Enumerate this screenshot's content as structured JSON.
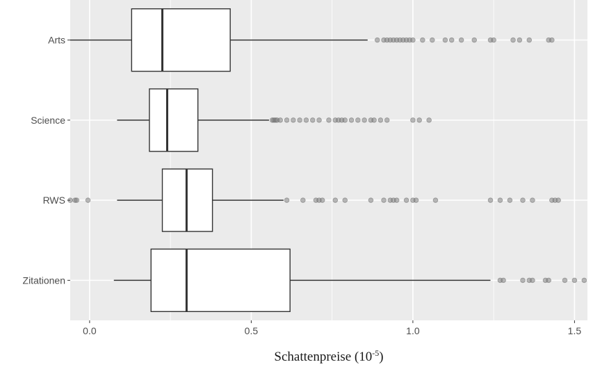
{
  "chart_data": {
    "type": "boxplot",
    "orientation": "horizontal",
    "xlabel": "Schattenpreise (10",
    "xlabel_superscript": "-5",
    "xlabel_suffix": ")",
    "xlim": [
      -0.06,
      1.54
    ],
    "xticks": [
      0.0,
      0.5,
      1.0,
      1.5
    ],
    "xtick_labels": [
      "0.0",
      "0.5",
      "1.0",
      "1.5"
    ],
    "grid": true,
    "colors": {
      "panel_background": "#ebebeb",
      "gridline": "#ffffff",
      "box_fill": "#ffffff",
      "box_stroke": "#333333",
      "outlier": "#808080"
    },
    "categories": [
      "Arts",
      "Science",
      "RWS",
      "Zitationen"
    ],
    "boxes": [
      {
        "label": "Arts",
        "whisker_low": -0.06,
        "q1": 0.13,
        "median": 0.225,
        "q3": 0.435,
        "whisker_high": 0.86,
        "outliers": [
          0.89,
          0.91,
          0.92,
          0.93,
          0.94,
          0.95,
          0.96,
          0.97,
          0.98,
          0.99,
          1.0,
          1.03,
          1.06,
          1.1,
          1.12,
          1.15,
          1.19,
          1.24,
          1.25,
          1.31,
          1.33,
          1.36,
          1.42,
          1.43
        ]
      },
      {
        "label": "Science",
        "whisker_low": 0.085,
        "q1": 0.185,
        "median": 0.24,
        "q3": 0.335,
        "whisker_high": 0.555,
        "outliers": [
          0.565,
          0.57,
          0.575,
          0.58,
          0.59,
          0.61,
          0.63,
          0.65,
          0.67,
          0.69,
          0.71,
          0.74,
          0.76,
          0.77,
          0.78,
          0.79,
          0.81,
          0.83,
          0.85,
          0.87,
          0.88,
          0.9,
          0.92,
          1.0,
          1.02,
          1.05
        ]
      },
      {
        "label": "RWS",
        "whisker_low": 0.085,
        "q1": 0.225,
        "median": 0.3,
        "q3": 0.38,
        "whisker_high": 0.6,
        "outliers": [
          -0.06,
          -0.045,
          -0.04,
          -0.005,
          0.61,
          0.66,
          0.7,
          0.71,
          0.72,
          0.76,
          0.79,
          0.87,
          0.91,
          0.93,
          0.94,
          0.95,
          0.98,
          1.0,
          1.01,
          1.07,
          1.24,
          1.27,
          1.3,
          1.34,
          1.37,
          1.43,
          1.44,
          1.45
        ]
      },
      {
        "label": "Zitationen",
        "whisker_low": 0.075,
        "q1": 0.19,
        "median": 0.3,
        "q3": 0.62,
        "whisker_high": 1.24,
        "outliers": [
          1.27,
          1.28,
          1.34,
          1.36,
          1.37,
          1.41,
          1.42,
          1.47,
          1.5,
          1.53
        ]
      }
    ]
  }
}
